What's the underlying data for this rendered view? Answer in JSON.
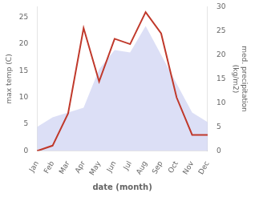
{
  "chart_data": {
    "type": "line",
    "xlabel": "date (month)",
    "ylabel": "max temp (C)",
    "y2label": "med. precipitation\n(kg/m2)",
    "categories": [
      "Jan",
      "Feb",
      "Mar",
      "Apr",
      "May",
      "Jun",
      "Jul",
      "Aug",
      "Sep",
      "Oct",
      "Nov",
      "Dec"
    ],
    "series": [
      {
        "type": "line",
        "color": "#c0392b",
        "values": [
          0.0,
          1.0,
          7.0,
          23.0,
          13.0,
          21.0,
          20.0,
          26.0,
          22.0,
          10.0,
          3.0,
          3.0
        ]
      },
      {
        "type": "area",
        "color": "#c5caf0",
        "axis": "y2",
        "values": [
          5.0,
          7.0,
          8.0,
          9.0,
          17.0,
          21.0,
          20.5,
          26.0,
          20.0,
          14.0,
          8.0,
          6.0
        ]
      }
    ],
    "ylim": [
      0,
      27
    ],
    "yticks": [
      0,
      5,
      10,
      15,
      20,
      25
    ],
    "y2lim": [
      0,
      30
    ],
    "y2ticks": [
      0,
      5,
      10,
      15,
      20,
      25,
      30
    ],
    "grid": false
  }
}
